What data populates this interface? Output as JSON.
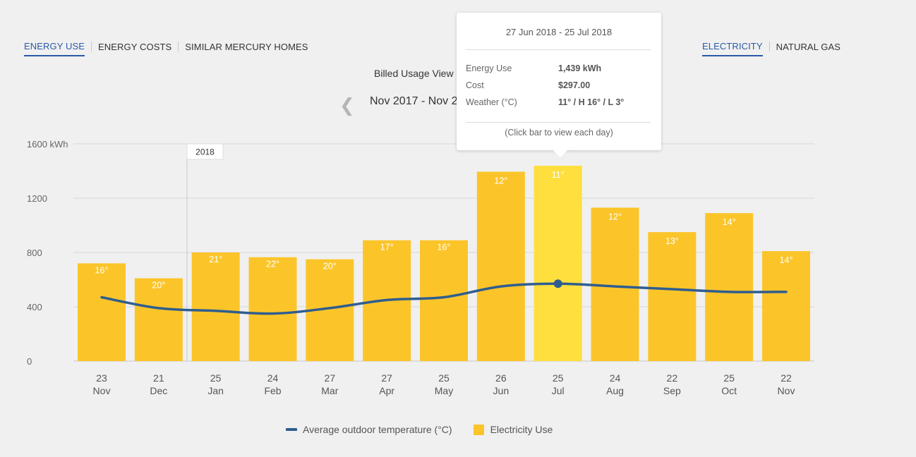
{
  "tabs_left": [
    "ENERGY USE",
    "ENERGY COSTS",
    "SIMILAR MERCURY HOMES"
  ],
  "tabs_right": [
    "ELECTRICITY",
    "NATURAL GAS"
  ],
  "view_label": "Billed Usage View",
  "period_label": "Nov 2017 - Nov 2",
  "colors": {
    "accent": "#2a5aa8",
    "bar": "#fbc52a",
    "bar_selected": "#fedf3e",
    "temperature_line": "#2f5d8f",
    "temperature_label": "#9b3fb0"
  },
  "tooltip": {
    "date": "27 Jun 2018 - 25 Jul 2018",
    "rows": [
      {
        "label": "Energy Use",
        "value": "1,439 kWh"
      },
      {
        "label": "Cost",
        "value": "$297.00"
      },
      {
        "label": "Weather (°C)",
        "value": "11° / H 16° / L 3°"
      }
    ],
    "footer": "(Click bar to view each day)"
  },
  "legend": {
    "temperature": "Average outdoor temperature (°C)",
    "usage": "Electricity Use"
  },
  "chart_data": {
    "type": "bar",
    "ylim": [
      0,
      1600
    ],
    "y_ticks": [
      "0",
      "400",
      "800",
      "1200",
      "1600 kWh"
    ],
    "year_marker": "2018",
    "categories": [
      {
        "day": "23",
        "month": "Nov"
      },
      {
        "day": "21",
        "month": "Dec"
      },
      {
        "day": "25",
        "month": "Jan"
      },
      {
        "day": "24",
        "month": "Feb"
      },
      {
        "day": "27",
        "month": "Mar"
      },
      {
        "day": "27",
        "month": "Apr"
      },
      {
        "day": "25",
        "month": "May"
      },
      {
        "day": "26",
        "month": "Jun"
      },
      {
        "day": "25",
        "month": "Jul"
      },
      {
        "day": "24",
        "month": "Aug"
      },
      {
        "day": "22",
        "month": "Sep"
      },
      {
        "day": "25",
        "month": "Oct"
      },
      {
        "day": "22",
        "month": "Nov"
      }
    ],
    "selected_index": 8,
    "series": [
      {
        "name": "Electricity Use",
        "type": "bar",
        "values": [
          720,
          610,
          800,
          765,
          750,
          890,
          890,
          1395,
          1439,
          1130,
          950,
          1090,
          810
        ]
      },
      {
        "name": "Average outdoor temperature (°C)",
        "type": "line",
        "values": [
          16,
          20,
          21,
          22,
          20,
          17,
          16,
          12,
          11,
          12,
          13,
          14,
          14
        ],
        "labels": [
          "16°",
          "20°",
          "21°",
          "22°",
          "20°",
          "17°",
          "16°",
          "12°",
          "11°",
          "12°",
          "13°",
          "14°",
          "14°"
        ]
      }
    ]
  }
}
